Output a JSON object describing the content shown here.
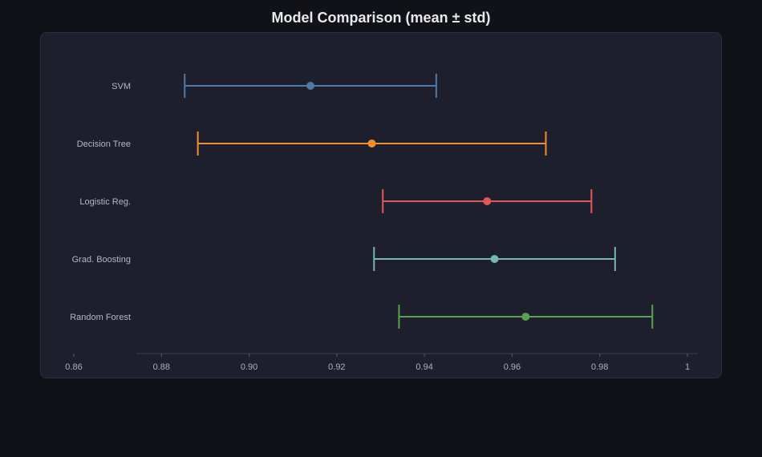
{
  "chart_data": {
    "type": "scatter",
    "title": "Model Comparison (mean ± std)",
    "xlabel": "",
    "ylabel": "",
    "xlim": [
      0.86,
      1.0
    ],
    "x_ticks": [
      "0.86",
      "0.88",
      "0.90",
      "0.92",
      "0.94",
      "0.96",
      "0.98",
      "1"
    ],
    "categories": [
      "SVM",
      "Decision Tree",
      "Logistic Reg.",
      "Grad. Boosting",
      "Random Forest"
    ],
    "series": [
      {
        "category": "SVM",
        "mean": 0.914,
        "std": 0.0287,
        "color": "#4e79a7"
      },
      {
        "category": "Decision Tree",
        "mean": 0.928,
        "std": 0.0397,
        "color": "#f28e2b"
      },
      {
        "category": "Logistic Reg.",
        "mean": 0.9543,
        "std": 0.0238,
        "color": "#e15759"
      },
      {
        "category": "Grad. Boosting",
        "mean": 0.956,
        "std": 0.0275,
        "color": "#76b7b2"
      },
      {
        "category": "Random Forest",
        "mean": 0.9631,
        "std": 0.0289,
        "color": "#59a14f"
      }
    ],
    "grid": false
  },
  "colors": {
    "background": "#111217",
    "panel": "#1e1f2d",
    "axis": "#3a3c4e"
  }
}
